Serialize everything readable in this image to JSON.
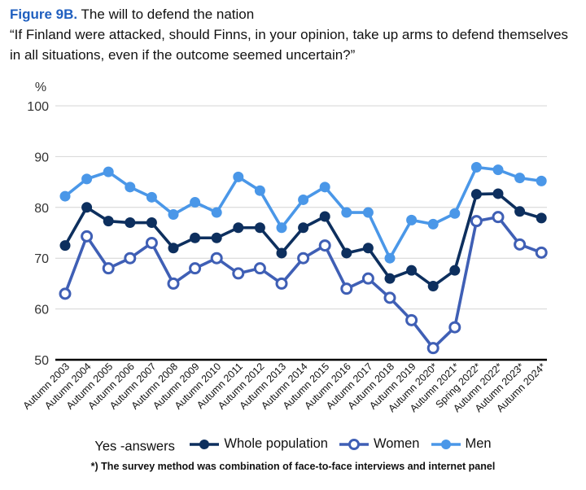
{
  "header": {
    "figure_label": "Figure 9B.",
    "figure_title": "The will to defend the nation",
    "question": "“If Finland were attacked, should Finns, in your opinion, take up arms to defend themselves in all situations, even if the outcome seemed uncertain?”"
  },
  "legend": {
    "caption": "Yes -answers"
  },
  "footnote": "*) The survey method was combination of face-to-face interviews and internet panel",
  "chart_data": {
    "type": "line",
    "ylabel": "%",
    "ylim": [
      50,
      100
    ],
    "yticks": [
      50,
      60,
      70,
      80,
      90,
      100
    ],
    "grid": true,
    "legend_position": "bottom",
    "categories": [
      "Autumn 2003",
      "Autumn 2004",
      "Autumn 2005",
      "Autumn 2006",
      "Autumn 2007",
      "Autumn 2008",
      "Autumn 2009",
      "Autumn 2010",
      "Autumn 2011",
      "Autumn 2012",
      "Autumn 2013",
      "Autumn 2014",
      "Autumn 2015",
      "Autumn 2016",
      "Autumn 2017",
      "Autumn 2018",
      "Autumn 2019",
      "Autumn 2020*",
      "Autumn 2021*",
      "Spring 2022*",
      "Autumn 2022*",
      "Autumn 2023*",
      "Autumn 2024*"
    ],
    "series": [
      {
        "name": "Whole population",
        "color": "#0d2f5e",
        "marker": "filled",
        "values": [
          72.5,
          80,
          77.3,
          77,
          77,
          72,
          74,
          74,
          76,
          76,
          71,
          76,
          78.2,
          71,
          72,
          66,
          67.6,
          64.5,
          67.6,
          82.6,
          82.7,
          79.2,
          77.9
        ]
      },
      {
        "name": "Women",
        "color": "#3f5fb5",
        "marker": "hollow",
        "values": [
          63,
          74.3,
          68,
          70,
          73,
          65,
          68,
          70,
          67,
          68,
          65,
          70,
          72.5,
          64,
          66,
          62.2,
          57.8,
          52.3,
          56.4,
          77.3,
          78.1,
          72.7,
          71.1
        ]
      },
      {
        "name": "Men",
        "color": "#4a97e8",
        "marker": "filled",
        "values": [
          82.2,
          85.6,
          87,
          84,
          82,
          78.6,
          81,
          79,
          86,
          83.3,
          76,
          81.5,
          84,
          79,
          79,
          70,
          77.5,
          76.7,
          78.8,
          87.9,
          87.4,
          85.8,
          85.2
        ]
      }
    ]
  }
}
